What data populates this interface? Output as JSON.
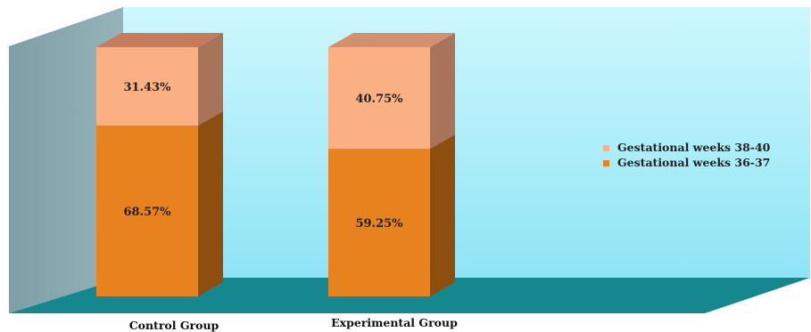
{
  "chart_data": {
    "type": "bar",
    "stacked": true,
    "three_d": true,
    "categories": [
      "Control Group",
      "Experimental Group"
    ],
    "series": [
      {
        "name": "Gestational weeks 36-37",
        "values": [
          68.57,
          59.25
        ],
        "labels": [
          "68.57%",
          "59.25%"
        ],
        "color": "#E8821E"
      },
      {
        "name": "Gestational weeks 38-40",
        "values": [
          31.43,
          40.75
        ],
        "labels": [
          "31.43%",
          "40.75%"
        ],
        "color": "#FBB084"
      }
    ],
    "ylim": [
      0,
      100
    ],
    "legend_position": "right",
    "legend_entries": [
      "Gestational weeks 38-40",
      "Gestational weeks 36-37"
    ],
    "colors": {
      "back_wall": "#AEEFFC",
      "side_wall": "#86A7AE",
      "floor": "#15878F"
    }
  }
}
